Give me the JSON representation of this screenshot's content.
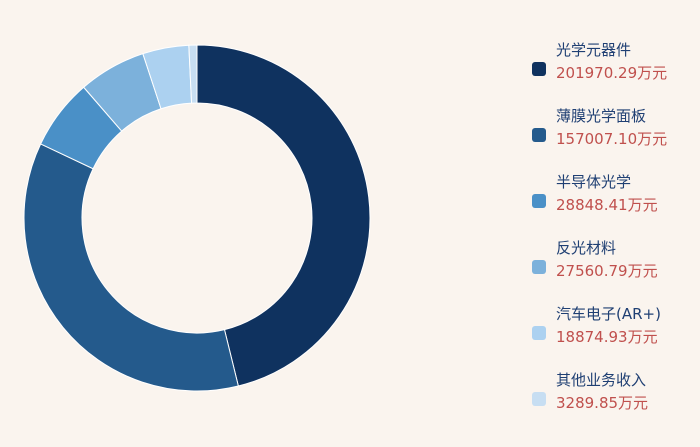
{
  "chart_data": {
    "type": "pie",
    "variant": "donut",
    "title": "",
    "legend_position": "right",
    "unit": "万元",
    "series": [
      {
        "name": "光学元器件",
        "value": 201970.29,
        "label": "201970.29万元",
        "color": "#0f325f"
      },
      {
        "name": "薄膜光学面板",
        "value": 157007.1,
        "label": "157007.10万元",
        "color": "#245a8c"
      },
      {
        "name": "半导体光学",
        "value": 28848.41,
        "label": "28848.41万元",
        "color": "#4a90c7"
      },
      {
        "name": "反光材料",
        "value": 27560.79,
        "label": "27560.79万元",
        "color": "#7cb1db"
      },
      {
        "name": "汽车电子(AR+)",
        "value": 18874.93,
        "label": "18874.93万元",
        "color": "#acd1f0"
      },
      {
        "name": "其他业务收入",
        "value": 3289.85,
        "label": "3289.85万元",
        "color": "#c7def2"
      }
    ]
  }
}
